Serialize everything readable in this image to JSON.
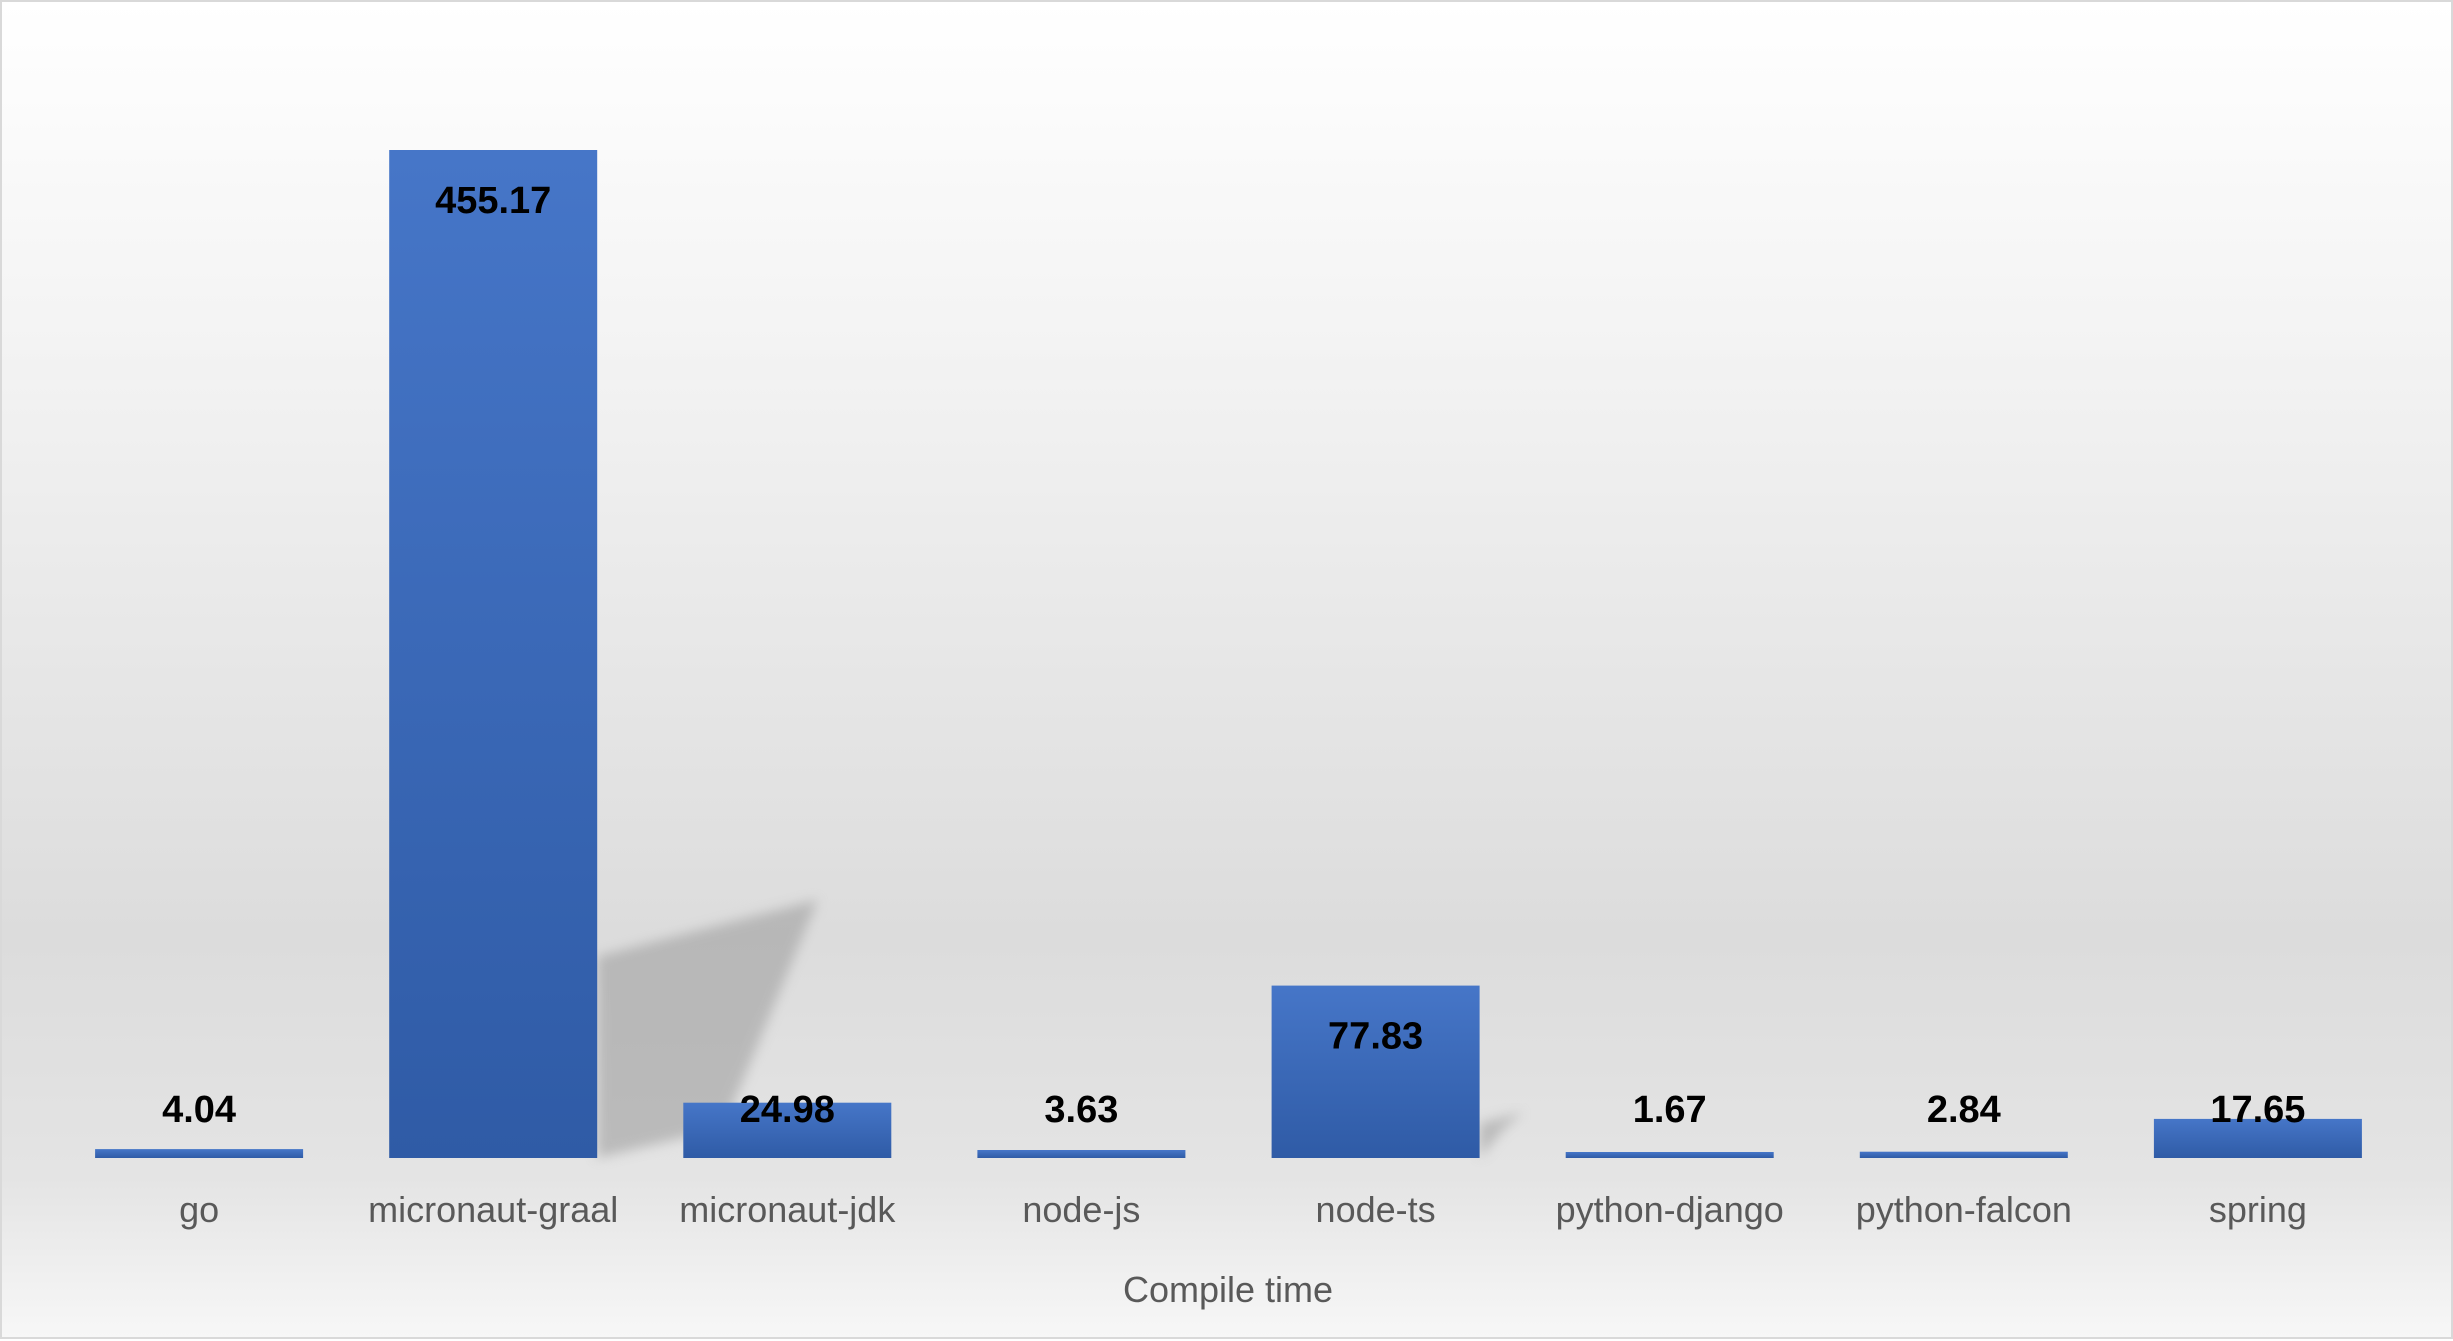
{
  "chart_data": {
    "type": "bar",
    "categories": [
      "go",
      "micronaut-graal",
      "micronaut-jdk",
      "node-js",
      "node-ts",
      "python-django",
      "python-falcon",
      "spring"
    ],
    "values": [
      4.04,
      455.17,
      24.98,
      3.63,
      77.83,
      1.67,
      2.84,
      17.65
    ],
    "data_labels": [
      "4.04",
      "455.17",
      "24.98",
      "3.63",
      "77.83",
      "1.67",
      "2.84",
      "17.65"
    ],
    "title": "",
    "xlabel": "Compile time",
    "ylabel": "",
    "ylim": [
      0,
      460
    ],
    "grid": false,
    "legend": "none",
    "bar_color": "#4472c4",
    "bar_color_dark": "#2f5aa5"
  }
}
